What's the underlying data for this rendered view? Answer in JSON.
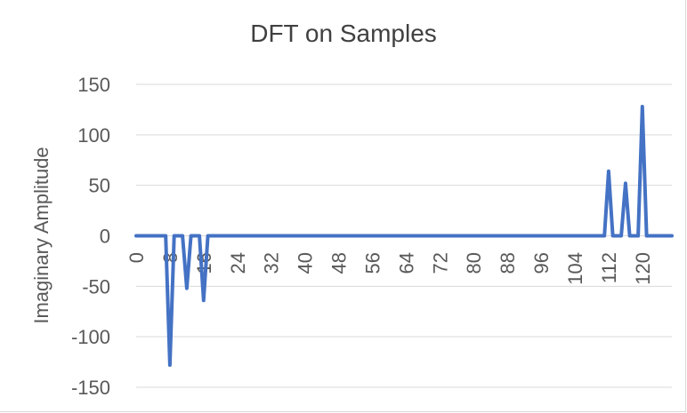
{
  "chart_data": {
    "type": "line",
    "title": "DFT on Samples",
    "xlabel": "",
    "ylabel": "Imaginary Amplitude",
    "ylim": [
      -150,
      150
    ],
    "y_ticks": [
      150,
      100,
      50,
      0,
      -50,
      -100,
      -150
    ],
    "x_ticks": [
      0,
      8,
      16,
      24,
      32,
      40,
      48,
      56,
      64,
      72,
      80,
      88,
      96,
      104,
      112,
      120
    ],
    "xlim": [
      0,
      127
    ],
    "grid": true,
    "line_color": "#4472c4",
    "series": [
      {
        "points": [
          [
            0,
            0
          ],
          [
            7,
            0
          ],
          [
            8,
            -128
          ],
          [
            9,
            0
          ],
          [
            11,
            0
          ],
          [
            12,
            -52
          ],
          [
            13,
            0
          ],
          [
            15,
            0
          ],
          [
            16,
            -64
          ],
          [
            17,
            0
          ],
          [
            111,
            0
          ],
          [
            112,
            64
          ],
          [
            113,
            0
          ],
          [
            115,
            0
          ],
          [
            116,
            52
          ],
          [
            117,
            0
          ],
          [
            119,
            0
          ],
          [
            120,
            128
          ],
          [
            121,
            0
          ],
          [
            127,
            0
          ]
        ]
      }
    ]
  }
}
